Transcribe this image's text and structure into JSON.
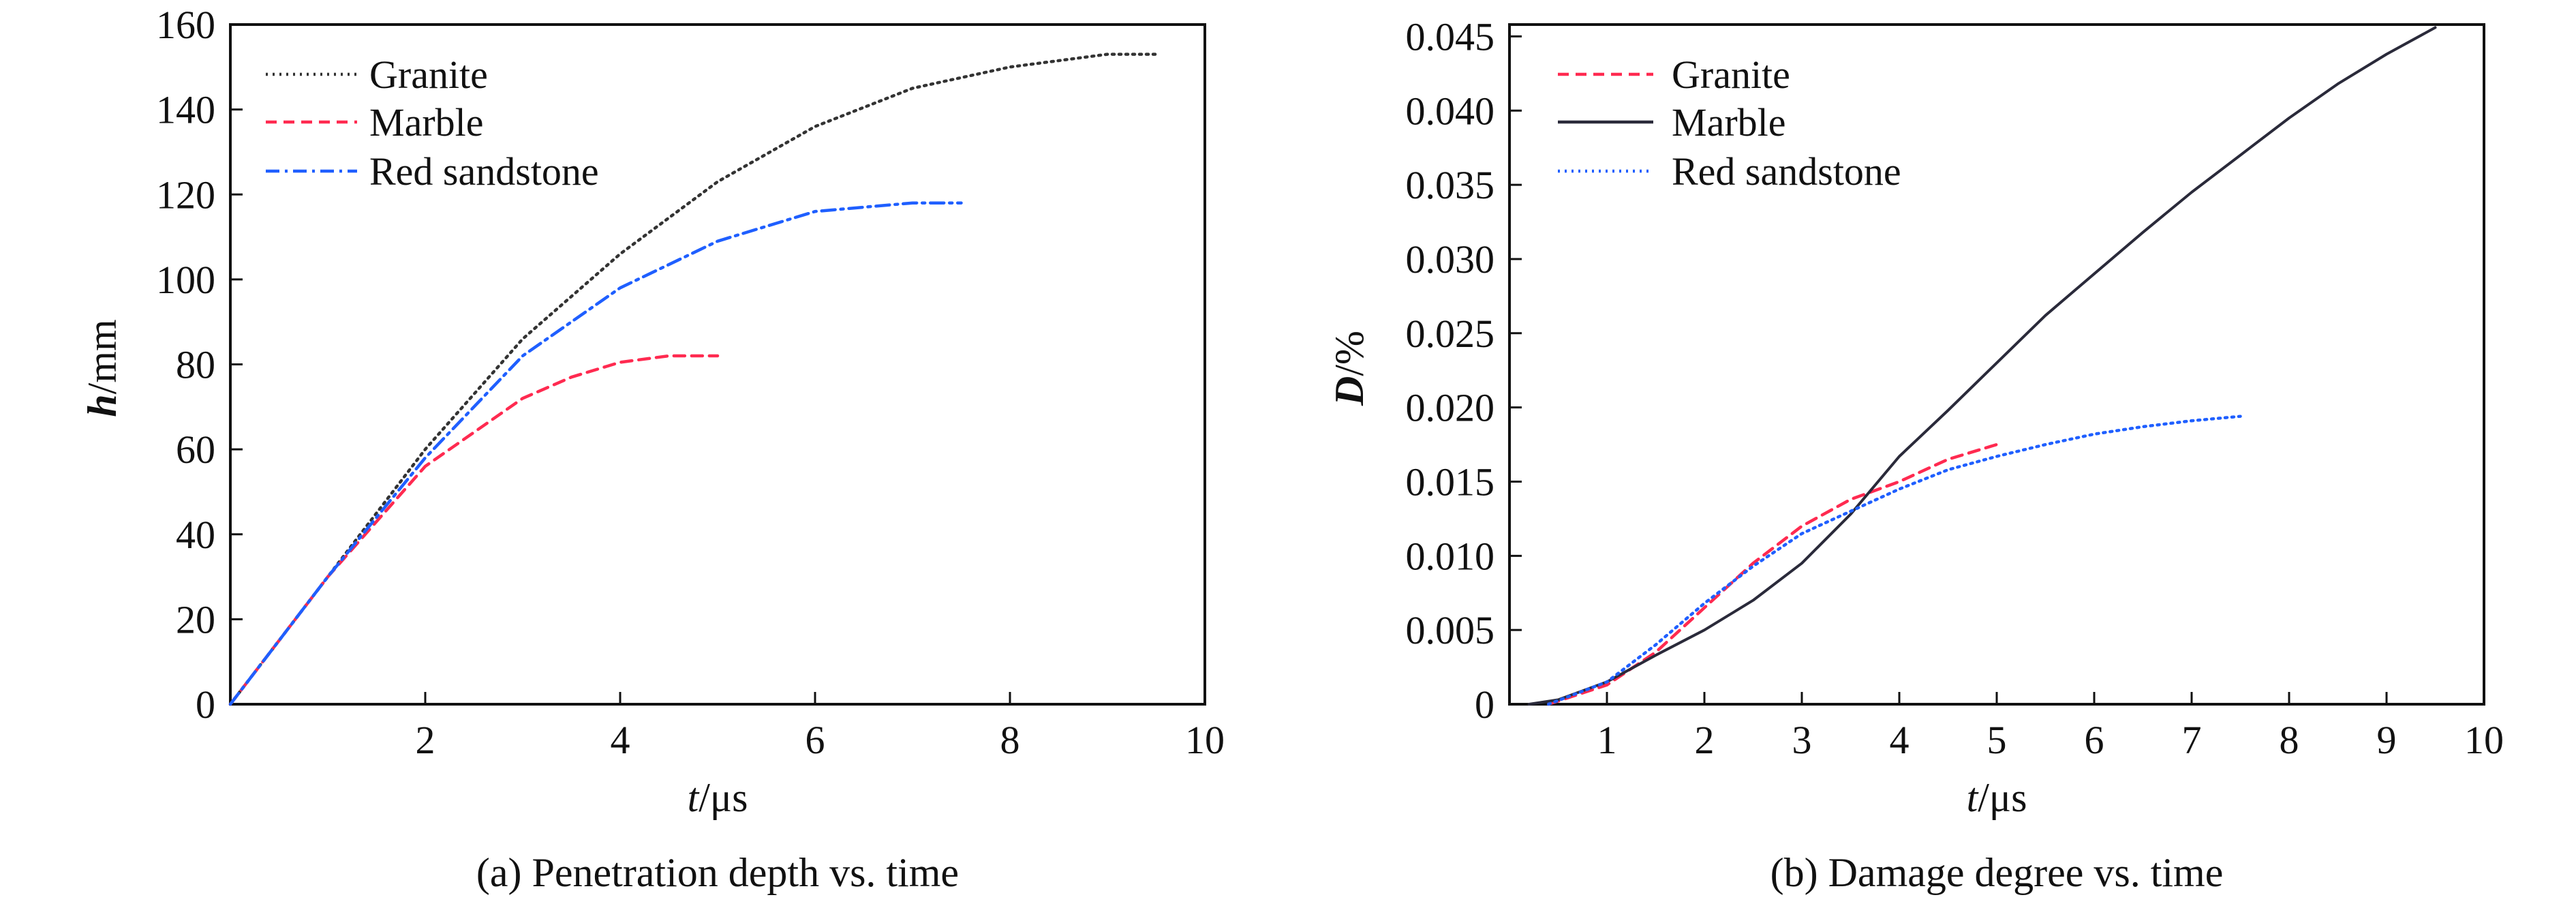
{
  "chart_data": [
    {
      "type": "line",
      "caption": "(a) Penetration depth vs. time",
      "xlabel_var": "t",
      "xlabel_unit": "/μs",
      "ylabel_var": "h",
      "ylabel_unit": "/mm",
      "xlim": [
        0,
        10
      ],
      "ylim": [
        0,
        160
      ],
      "xticks": [
        2,
        4,
        6,
        8,
        10
      ],
      "xtick_labels": [
        "2",
        "4",
        "6",
        "8",
        "10"
      ],
      "yticks": [
        0,
        20,
        40,
        60,
        80,
        100,
        120,
        140,
        160
      ],
      "ytick_labels": [
        "0",
        "20",
        "40",
        "60",
        "80",
        "100",
        "120",
        "140",
        "160"
      ],
      "legend_position": "top-left",
      "series": [
        {
          "name": "Granite",
          "color": "#333333",
          "dash": "dotted",
          "x": [
            0,
            1,
            2,
            3,
            4,
            5,
            6,
            7,
            8,
            9,
            9.5
          ],
          "y": [
            0,
            30,
            60,
            86,
            106,
            123,
            136,
            145,
            150,
            153,
            153
          ]
        },
        {
          "name": "Marble",
          "color": "#ff2a50",
          "dash": "dashed",
          "x": [
            0,
            1,
            2,
            3,
            3.5,
            4,
            4.5,
            5
          ],
          "y": [
            0,
            30,
            56,
            72,
            77,
            80.5,
            82,
            82
          ]
        },
        {
          "name": "Red sandstone",
          "color": "#1f5fff",
          "dash": "dashdot",
          "x": [
            0,
            1,
            2,
            3,
            4,
            5,
            6,
            6.5,
            7,
            7.5
          ],
          "y": [
            0,
            30,
            58,
            82,
            98,
            109,
            116,
            117,
            118,
            118
          ]
        }
      ]
    },
    {
      "type": "line",
      "caption": "(b) Damage degree vs. time",
      "xlabel_var": "t",
      "xlabel_unit": "/μs",
      "ylabel_var": "D",
      "ylabel_unit": "/%",
      "xlim": [
        0,
        10
      ],
      "ylim": [
        0,
        0.0458
      ],
      "xticks": [
        1,
        2,
        3,
        4,
        5,
        6,
        7,
        8,
        9,
        10
      ],
      "xtick_labels": [
        "1",
        "2",
        "3",
        "4",
        "5",
        "6",
        "7",
        "8",
        "9",
        "10"
      ],
      "yticks": [
        0,
        0.005,
        0.01,
        0.015,
        0.02,
        0.025,
        0.03,
        0.035,
        0.04,
        0.045
      ],
      "ytick_labels": [
        "0",
        "0.005",
        "0.010",
        "0.015",
        "0.020",
        "0.025",
        "0.030",
        "0.035",
        "0.040",
        "0.045"
      ],
      "legend_position": "top-left",
      "series": [
        {
          "name": "Granite",
          "color": "#ff2a50",
          "dash": "dashed",
          "x": [
            0.4,
            1,
            1.5,
            2,
            2.5,
            3,
            3.5,
            4,
            4.5,
            5
          ],
          "y": [
            0,
            0.0013,
            0.0035,
            0.0065,
            0.0095,
            0.012,
            0.0138,
            0.015,
            0.0165,
            0.0175
          ]
        },
        {
          "name": "Marble",
          "color": "#2a2a3a",
          "dash": "solid",
          "x": [
            0.2,
            0.5,
            1,
            1.5,
            2,
            2.5,
            3,
            3.5,
            4,
            4.5,
            5,
            5.5,
            6,
            6.5,
            7,
            7.5,
            8,
            8.5,
            9,
            9.5
          ],
          "y": [
            0,
            0.0003,
            0.0015,
            0.0033,
            0.005,
            0.007,
            0.0095,
            0.0128,
            0.0167,
            0.0198,
            0.023,
            0.0262,
            0.029,
            0.0318,
            0.0345,
            0.037,
            0.0395,
            0.0418,
            0.0438,
            0.0456
          ]
        },
        {
          "name": "Red sandstone",
          "color": "#1f5fff",
          "dash": "dotted",
          "x": [
            0.4,
            1,
            1.5,
            2,
            2.5,
            3,
            3.5,
            4,
            4.5,
            5,
            5.5,
            6,
            6.5,
            7,
            7.5
          ],
          "y": [
            0,
            0.0015,
            0.004,
            0.0068,
            0.0093,
            0.0115,
            0.013,
            0.0145,
            0.0158,
            0.0167,
            0.0175,
            0.0182,
            0.0187,
            0.0191,
            0.0194
          ]
        }
      ]
    }
  ]
}
